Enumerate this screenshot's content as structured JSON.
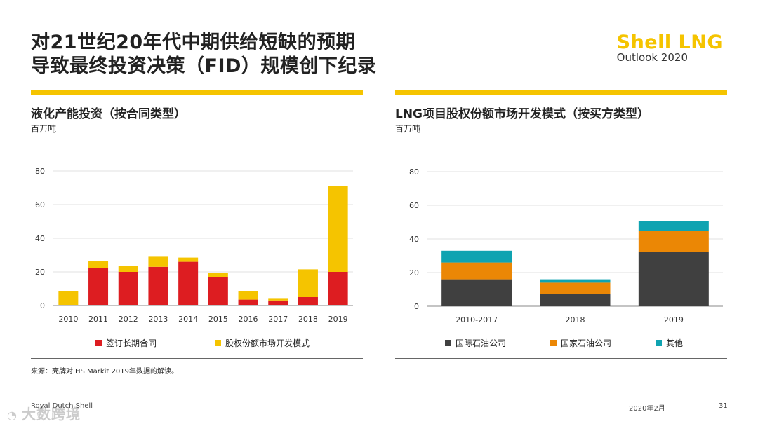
{
  "title": {
    "line1": "对21世纪20年代中期供给短缺的预期",
    "line2": "导致最终投资决策（FID）规模创下纪录"
  },
  "logo": {
    "main": "Shell LNG",
    "sub": "Outlook 2020"
  },
  "left_panel": {
    "title": "液化产能投资（按合同类型）",
    "unit": "百万吨",
    "legend": [
      "签订长期合同",
      "股权份额市场开发模式"
    ]
  },
  "right_panel": {
    "title": "LNG项目股权份额市场开发模式（按买方类型）",
    "unit": "百万吨",
    "legend": [
      "国际石油公司",
      "国家石油公司",
      "其他"
    ]
  },
  "source": "来源：壳牌对IHS Markit 2019年数据的解读。",
  "footer": {
    "company": "Royal Dutch Shell",
    "date": "2020年2月",
    "page": "31"
  },
  "watermark": {
    "text": "大数跨境"
  },
  "colors": {
    "yellow": "#f5c400",
    "red": "#dd1d21",
    "dark": "#404040",
    "orange": "#eb8705",
    "teal": "#0fa3b1"
  },
  "chart_data": [
    {
      "type": "bar",
      "stacked": true,
      "title": "液化产能投资（按合同类型）",
      "ylabel": "百万吨",
      "ylim": [
        0,
        80
      ],
      "yticks": [
        0,
        20,
        40,
        60,
        80
      ],
      "categories": [
        "2010",
        "2011",
        "2012",
        "2013",
        "2014",
        "2015",
        "2016",
        "2017",
        "2018",
        "2019"
      ],
      "series": [
        {
          "name": "签订长期合同",
          "color": "#dd1d21",
          "values": [
            0,
            22.5,
            20,
            23,
            26,
            17,
            3.5,
            3,
            5,
            20
          ]
        },
        {
          "name": "股权份额市场开发模式",
          "color": "#f5c400",
          "values": [
            8.5,
            4,
            3.5,
            6,
            2.5,
            2.5,
            5,
            1,
            16.5,
            51
          ]
        }
      ]
    },
    {
      "type": "bar",
      "stacked": true,
      "title": "LNG项目股权份额市场开发模式（按买方类型）",
      "ylabel": "百万吨",
      "ylim": [
        0,
        80
      ],
      "yticks": [
        0,
        20,
        40,
        60,
        80
      ],
      "categories": [
        "2010-2017",
        "2018",
        "2019"
      ],
      "series": [
        {
          "name": "国际石油公司",
          "color": "#404040",
          "values": [
            16,
            7.5,
            32.5
          ]
        },
        {
          "name": "国家石油公司",
          "color": "#eb8705",
          "values": [
            10,
            6.5,
            12.5
          ]
        },
        {
          "name": "其他",
          "color": "#0fa3b1",
          "values": [
            7,
            2,
            5.5
          ]
        }
      ]
    }
  ]
}
